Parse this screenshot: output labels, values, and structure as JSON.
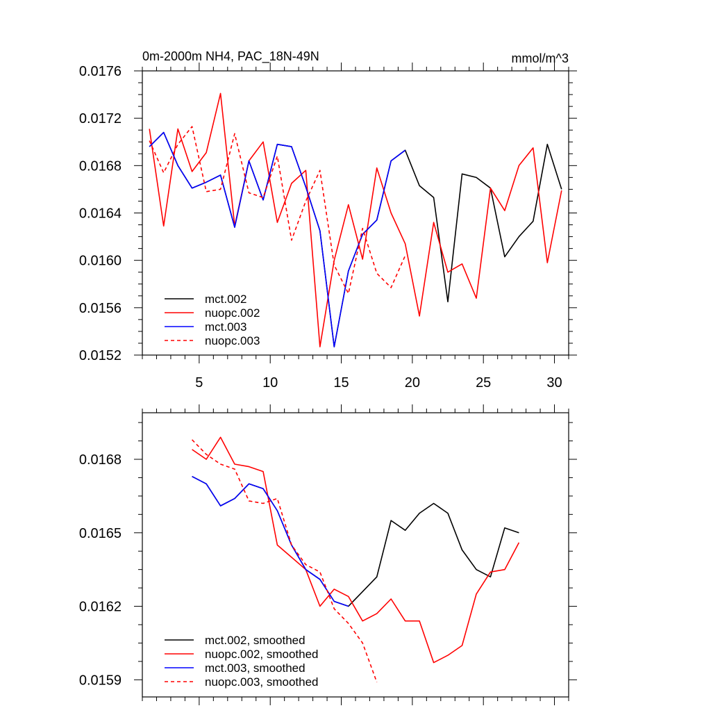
{
  "chart_data": [
    {
      "type": "line",
      "title": "0m-2000m NH4, PAC_18N-49N",
      "units": "mmol/m^3",
      "xlim": [
        1,
        31
      ],
      "ylim": [
        0.0152,
        0.0176
      ],
      "x_ticks": [
        5,
        10,
        15,
        20,
        25,
        30
      ],
      "x_tick_labels": [
        "5",
        "10",
        "15",
        "20",
        "25",
        "30"
      ],
      "y_ticks": [
        0.0152,
        0.0156,
        0.016,
        0.0164,
        0.0168,
        0.0172,
        0.0176
      ],
      "y_tick_labels": [
        "0.0152",
        "0.0156",
        "0.0160",
        "0.0164",
        "0.0168",
        "0.0172",
        "0.0176"
      ],
      "legend_position": "bottom-left",
      "series": [
        {
          "name": "mct.002",
          "color": "#000000",
          "dash": "solid",
          "x": [
            1.5,
            2.5,
            3.5,
            4.5,
            5.5,
            6.5,
            7.5,
            8.5,
            9.5,
            10.5,
            11.5,
            12.5,
            13.5,
            14.5,
            15.5,
            16.5,
            17.5,
            18.5,
            19.5,
            20.5,
            21.5,
            22.5,
            23.5,
            24.5,
            25.5,
            26.5,
            27.5,
            28.5,
            29.5,
            30.5
          ],
          "values": [
            0.01696,
            0.01708,
            0.0168,
            0.01661,
            0.01666,
            0.01672,
            0.01628,
            0.01684,
            0.01651,
            0.01698,
            0.01696,
            0.01662,
            0.01625,
            0.01527,
            0.01591,
            0.01622,
            0.01634,
            0.01684,
            0.01693,
            0.01663,
            0.01653,
            0.01565,
            0.01673,
            0.0167,
            0.01661,
            0.01603,
            0.0162,
            0.01633,
            0.01698,
            0.0166
          ]
        },
        {
          "name": "nuopc.002",
          "color": "#ff0000",
          "dash": "solid",
          "x": [
            1.5,
            2.5,
            3.5,
            4.5,
            5.5,
            6.5,
            7.5,
            8.5,
            9.5,
            10.5,
            11.5,
            12.5,
            13.5,
            14.5,
            15.5,
            16.5,
            17.5,
            18.5,
            19.5,
            20.5,
            21.5,
            22.5,
            23.5,
            24.5,
            25.5,
            26.5,
            27.5,
            28.5,
            29.5,
            30.5
          ],
          "values": [
            0.01711,
            0.01629,
            0.01711,
            0.01675,
            0.01691,
            0.01741,
            0.01629,
            0.01684,
            0.017,
            0.01632,
            0.01665,
            0.01676,
            0.01527,
            0.016,
            0.01647,
            0.01601,
            0.01678,
            0.0164,
            0.01614,
            0.01553,
            0.01632,
            0.0159,
            0.01597,
            0.01568,
            0.01661,
            0.01642,
            0.0168,
            0.01695,
            0.01598,
            0.01659
          ]
        },
        {
          "name": "mct.003",
          "color": "#0000ff",
          "dash": "solid",
          "x": [
            1.5,
            2.5,
            3.5,
            4.5,
            5.5,
            6.5,
            7.5,
            8.5,
            9.5,
            10.5,
            11.5,
            12.5,
            13.5,
            14.5,
            15.5,
            16.5,
            17.5,
            18.5,
            19.5
          ],
          "values": [
            0.01696,
            0.01708,
            0.0168,
            0.01661,
            0.01666,
            0.01672,
            0.01628,
            0.01684,
            0.01651,
            0.01698,
            0.01696,
            0.01662,
            0.01625,
            0.01527,
            0.01591,
            0.01622,
            0.01634,
            0.01684,
            0.01693
          ]
        },
        {
          "name": "nuopc.003",
          "color": "#ff0000",
          "dash": "dashed",
          "x": [
            1.5,
            2.5,
            3.5,
            4.5,
            5.5,
            6.5,
            7.5,
            8.5,
            9.5,
            10.5,
            11.5,
            12.5,
            13.5,
            14.5,
            15.5,
            16.5,
            17.5,
            18.5,
            19.5
          ],
          "values": [
            0.01701,
            0.01674,
            0.01698,
            0.01713,
            0.01658,
            0.0166,
            0.01707,
            0.01657,
            0.01653,
            0.01688,
            0.01617,
            0.0165,
            0.01676,
            0.01596,
            0.01572,
            0.01627,
            0.01589,
            0.01577,
            0.01604
          ]
        }
      ]
    },
    {
      "type": "line",
      "xlim": [
        1,
        31
      ],
      "ylim": [
        0.01583,
        0.01699
      ],
      "x_ticks": [
        5,
        10,
        15,
        20,
        25,
        30
      ],
      "y_ticks": [
        0.0159,
        0.0162,
        0.0165,
        0.0168
      ],
      "y_tick_labels": [
        "0.0159",
        "0.0162",
        "0.0165",
        "0.0168"
      ],
      "legend_position": "bottom-left",
      "series": [
        {
          "name": "mct.002, smoothed",
          "color": "#000000",
          "dash": "solid",
          "x": [
            4.5,
            5.5,
            6.5,
            7.5,
            8.5,
            9.5,
            10.5,
            11.5,
            12.5,
            13.5,
            14.5,
            15.5,
            16.5,
            17.5,
            18.5,
            19.5,
            20.5,
            21.5,
            22.5,
            23.5,
            24.5,
            25.5,
            26.5,
            27.5
          ],
          "values": [
            0.01673,
            0.0167,
            0.01661,
            0.01664,
            0.0167,
            0.01668,
            0.01659,
            0.01645,
            0.01635,
            0.01631,
            0.01622,
            0.0162,
            0.01626,
            0.01632,
            0.01655,
            0.01651,
            0.01658,
            0.01662,
            0.01658,
            0.01643,
            0.01635,
            0.01632,
            0.01652,
            0.0165
          ]
        },
        {
          "name": "nuopc.002, smoothed",
          "color": "#ff0000",
          "dash": "solid",
          "x": [
            4.5,
            5.5,
            6.5,
            7.5,
            8.5,
            9.5,
            10.5,
            11.5,
            12.5,
            13.5,
            14.5,
            15.5,
            16.5,
            17.5,
            18.5,
            19.5,
            20.5,
            21.5,
            22.5,
            23.5,
            24.5,
            25.5,
            26.5,
            27.5
          ],
          "values": [
            0.01684,
            0.0168,
            0.01689,
            0.01678,
            0.01677,
            0.01675,
            0.01645,
            0.0164,
            0.01635,
            0.0162,
            0.01627,
            0.01624,
            0.01614,
            0.01617,
            0.01623,
            0.01614,
            0.01614,
            0.01597,
            0.016,
            0.01604,
            0.01625,
            0.01634,
            0.01635,
            0.01646
          ]
        },
        {
          "name": "mct.003, smoothed",
          "color": "#0000ff",
          "dash": "solid",
          "x": [
            4.5,
            5.5,
            6.5,
            7.5,
            8.5,
            9.5,
            10.5,
            11.5,
            12.5,
            13.5,
            14.5,
            15.5
          ],
          "values": [
            0.01673,
            0.0167,
            0.01661,
            0.01664,
            0.0167,
            0.01668,
            0.01659,
            0.01645,
            0.01635,
            0.01631,
            0.01622,
            0.0162
          ]
        },
        {
          "name": "nuopc.003, smoothed",
          "color": "#ff0000",
          "dash": "dashed",
          "x": [
            4.5,
            5.5,
            6.5,
            7.5,
            8.5,
            9.5,
            10.5,
            11.5,
            12.5,
            13.5,
            14.5,
            15.5,
            16.5,
            17.5
          ],
          "values": [
            0.01688,
            0.01682,
            0.01678,
            0.01676,
            0.01663,
            0.01662,
            0.01664,
            0.01645,
            0.01637,
            0.01634,
            0.01619,
            0.01613,
            0.01605,
            0.01589
          ]
        }
      ]
    }
  ]
}
